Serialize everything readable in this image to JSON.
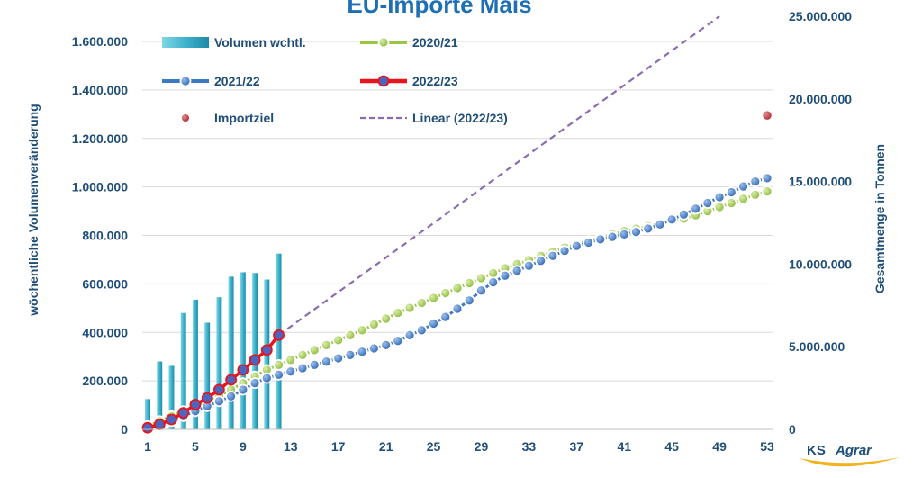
{
  "chart_data": {
    "type": "bar+line",
    "title": "EU-Importe Mais",
    "ylabel": "wöchentliche Volumenveränderung",
    "y2label": "Gesamtmenge in Tonnen",
    "xlabel": "",
    "xlim": [
      1,
      53
    ],
    "x_ticks": [
      1,
      5,
      9,
      13,
      17,
      21,
      25,
      29,
      33,
      37,
      41,
      45,
      49,
      53
    ],
    "ylim": [
      0,
      1600000
    ],
    "y_ticks": [
      "0",
      "200.000",
      "400.000",
      "600.000",
      "800.000",
      "1.000.000",
      "1.200.000",
      "1.400.000",
      "1.600.000"
    ],
    "y_tick_values": [
      0,
      200000,
      400000,
      600000,
      800000,
      1000000,
      1200000,
      1400000,
      1600000
    ],
    "y2lim": [
      0,
      25000000
    ],
    "y2_ticks": [
      "0",
      "5.000.000",
      "10.000.000",
      "15.000.000",
      "20.000.000",
      "25.000.000"
    ],
    "y2_tick_values": [
      0,
      5000000,
      10000000,
      15000000,
      20000000,
      25000000
    ],
    "grid": "horizontal",
    "legend_position": "top-left",
    "legend": [
      {
        "label": "Volumen wchtl.",
        "kind": "bar"
      },
      {
        "label": "2020/21",
        "kind": "line"
      },
      {
        "label": "2021/22",
        "kind": "line"
      },
      {
        "label": "2022/23",
        "kind": "line"
      },
      {
        "label": "Importziel",
        "kind": "point"
      },
      {
        "label": "Linear (2022/23)",
        "kind": "dashed"
      }
    ],
    "bars": {
      "name": "Volumen wchtl.",
      "axis": "left",
      "x": [
        1,
        2,
        3,
        4,
        5,
        6,
        7,
        8,
        9,
        10,
        11,
        12
      ],
      "values": [
        125000,
        280000,
        262000,
        480000,
        535000,
        440000,
        545000,
        630000,
        648000,
        645000,
        618000,
        725000
      ]
    },
    "series": [
      {
        "name": "2020/21",
        "axis": "right",
        "x": [
          1,
          2,
          3,
          4,
          5,
          6,
          7,
          8,
          9,
          10,
          11,
          12,
          13,
          14,
          15,
          16,
          17,
          18,
          19,
          20,
          21,
          22,
          23,
          24,
          25,
          26,
          27,
          28,
          29,
          30,
          31,
          32,
          33,
          34,
          35,
          36,
          37,
          38,
          39,
          40,
          41,
          42,
          43,
          44,
          45,
          46,
          47,
          48,
          49,
          50,
          51,
          52,
          53
        ],
        "values": [
          200000,
          500000,
          800000,
          1100000,
          1400000,
          1700000,
          2000000,
          2400000,
          2800000,
          3200000,
          3600000,
          3900000,
          4200000,
          4500000,
          4800000,
          5100000,
          5400000,
          5700000,
          6000000,
          6350000,
          6700000,
          7050000,
          7350000,
          7650000,
          7950000,
          8250000,
          8550000,
          8850000,
          9150000,
          9450000,
          9750000,
          10000000,
          10250000,
          10500000,
          10750000,
          11000000,
          11200000,
          11400000,
          11600000,
          11800000,
          12000000,
          12150000,
          12300000,
          12450000,
          12600000,
          12750000,
          12950000,
          13200000,
          13450000,
          13700000,
          13950000,
          14200000,
          14400000
        ]
      },
      {
        "name": "2021/22",
        "axis": "right",
        "x": [
          1,
          2,
          3,
          4,
          5,
          6,
          7,
          8,
          9,
          10,
          11,
          12,
          13,
          14,
          15,
          16,
          17,
          18,
          19,
          20,
          21,
          22,
          23,
          24,
          25,
          26,
          27,
          28,
          29,
          30,
          31,
          32,
          33,
          34,
          35,
          36,
          37,
          38,
          39,
          40,
          41,
          42,
          43,
          44,
          45,
          46,
          47,
          48,
          49,
          50,
          51,
          52,
          53
        ],
        "values": [
          100000,
          300000,
          500000,
          800000,
          1100000,
          1400000,
          1700000,
          2000000,
          2400000,
          2800000,
          3100000,
          3300000,
          3500000,
          3700000,
          3900000,
          4100000,
          4300000,
          4500000,
          4700000,
          4900000,
          5100000,
          5350000,
          5700000,
          6000000,
          6400000,
          6800000,
          7300000,
          7800000,
          8400000,
          8900000,
          9300000,
          9600000,
          9900000,
          10200000,
          10500000,
          10800000,
          11100000,
          11300000,
          11500000,
          11650000,
          11800000,
          11950000,
          12150000,
          12400000,
          12700000,
          13000000,
          13350000,
          13700000,
          14050000,
          14350000,
          14700000,
          15000000,
          15200000
        ]
      },
      {
        "name": "2022/23",
        "axis": "right",
        "x": [
          1,
          2,
          3,
          4,
          5,
          6,
          7,
          8,
          9,
          10,
          11,
          12
        ],
        "values": [
          100000,
          300000,
          600000,
          1000000,
          1500000,
          1900000,
          2400000,
          3000000,
          3600000,
          4200000,
          4800000,
          5700000
        ]
      }
    ],
    "importziel": {
      "name": "Importziel",
      "axis": "right",
      "x": 53,
      "value": 19000000
    },
    "trendline": {
      "name": "Linear (2022/23)",
      "axis": "right",
      "x": [
        12,
        49
      ],
      "values": [
        5700000,
        25000000
      ]
    }
  },
  "logo": {
    "ks": "KS",
    "agrar": "Agrar"
  },
  "colors": {
    "bar": "#3fb3cc",
    "series_2020": "#9dc444",
    "series_2021": "#3c78c4",
    "series_2022_line": "#e8141c",
    "series_2022_marker": "#4a66c0",
    "importziel": "#c0373e",
    "trend": "#8a6cb0",
    "axis_text": "#1f4e79",
    "grid": "#d9d9d9"
  }
}
